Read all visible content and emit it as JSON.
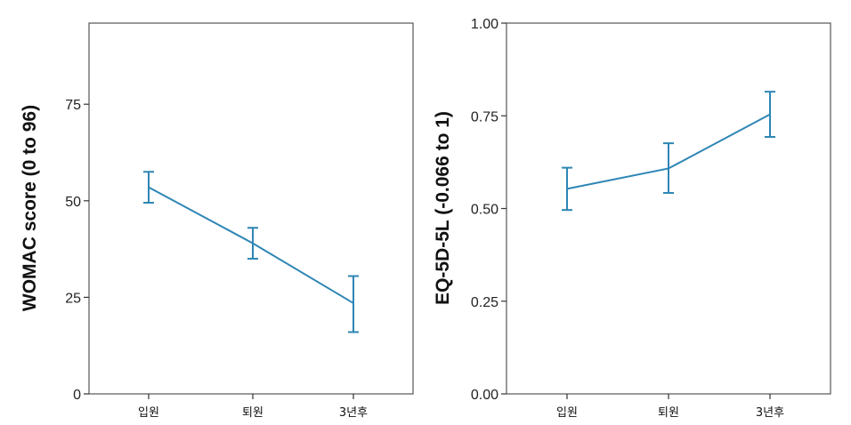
{
  "colors": {
    "series": "#2e86b5",
    "frame": "#555555"
  },
  "chart_data": [
    {
      "type": "line",
      "title": "",
      "xlabel": "",
      "ylabel": "WOMAC score (0 to 96)",
      "categories": [
        "입원",
        "퇴원",
        "3년후"
      ],
      "ylim": [
        0,
        96
      ],
      "yticks": [
        0,
        25,
        50,
        75
      ],
      "ytick_labels": [
        "0",
        "25",
        "50",
        "75"
      ],
      "grid": false,
      "series": [
        {
          "name": "WOMAC",
          "values": [
            53.5,
            39,
            23.5
          ],
          "error_low": [
            49.5,
            35,
            16
          ],
          "error_high": [
            57.5,
            43,
            30.5
          ]
        }
      ]
    },
    {
      "type": "line",
      "title": "",
      "xlabel": "",
      "ylabel": "EQ-5D-5L (-0.066 to 1)",
      "categories": [
        "입원",
        "퇴원",
        "3년후"
      ],
      "ylim": [
        0,
        1
      ],
      "yticks": [
        0,
        0.25,
        0.5,
        0.75,
        1
      ],
      "ytick_labels": [
        "0.00",
        "0.25",
        "0.50",
        "0.75",
        "1.00"
      ],
      "grid": false,
      "series": [
        {
          "name": "EQ-5D-5L",
          "values": [
            0.553,
            0.608,
            0.754
          ],
          "error_low": [
            0.496,
            0.542,
            0.693
          ],
          "error_high": [
            0.61,
            0.676,
            0.815
          ]
        }
      ]
    }
  ]
}
